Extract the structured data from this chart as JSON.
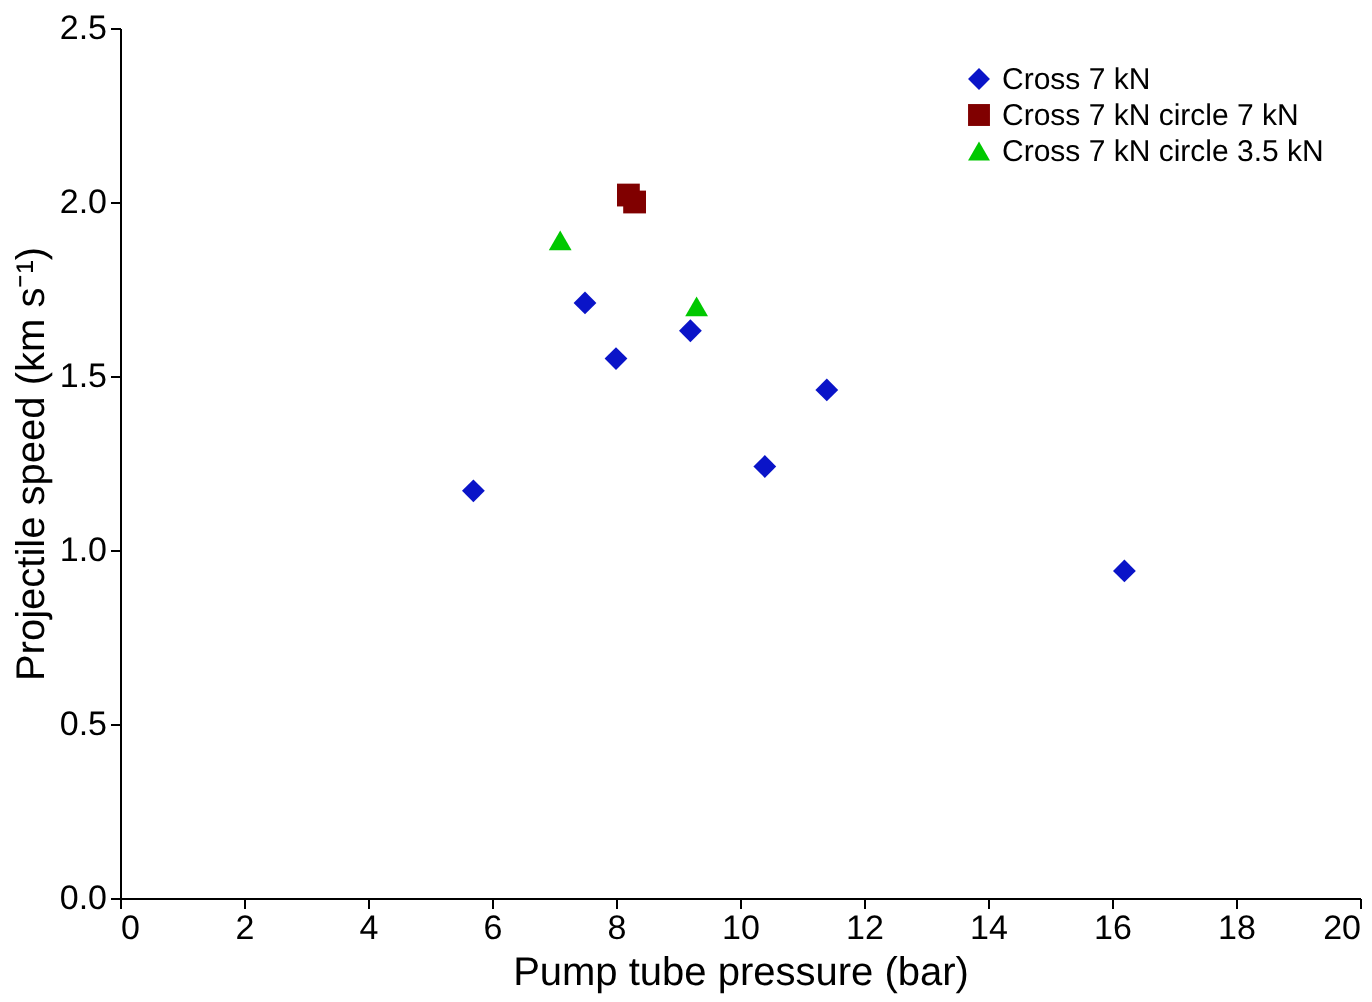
{
  "chart_data": {
    "type": "scatter",
    "xlabel": "Pump tube pressure (bar)",
    "ylabel": "Projectile speed (km s⁻¹)",
    "xlim": [
      0,
      20
    ],
    "xticks": [
      0,
      2,
      4,
      6,
      8,
      10,
      12,
      14,
      16,
      18,
      20
    ],
    "ylim": [
      0,
      2.5
    ],
    "yticks": [
      {
        "value": 0,
        "label": "0.0"
      },
      {
        "value": 0.5,
        "label": "0.5"
      },
      {
        "value": 1,
        "label": "1.0"
      },
      {
        "value": 1.5,
        "label": "1.5"
      },
      {
        "value": 2,
        "label": "2.0"
      },
      {
        "value": 2.5,
        "label": "2.5"
      }
    ],
    "grid": false,
    "legend": "top right",
    "series": [
      {
        "name": "Cross 7 kN",
        "color": "#0a14c8",
        "marker": "diamond",
        "x": [
          5.7,
          7.5,
          8.0,
          9.2,
          10.4,
          11.4,
          16.2
        ],
        "values": [
          1.17,
          1.71,
          1.55,
          1.63,
          1.24,
          1.46,
          0.94
        ]
      },
      {
        "name": "Cross 7 kN circle 7 kN",
        "color": "#800000",
        "marker": "square",
        "x": [
          8.2,
          8.3
        ],
        "values": [
          2.02,
          2.0
        ]
      },
      {
        "name": "Cross 7 kN circle 3.5 kN",
        "color": "#00c800",
        "marker": "triangle",
        "x": [
          7.1,
          9.3
        ],
        "values": [
          1.89,
          1.7
        ]
      }
    ]
  }
}
